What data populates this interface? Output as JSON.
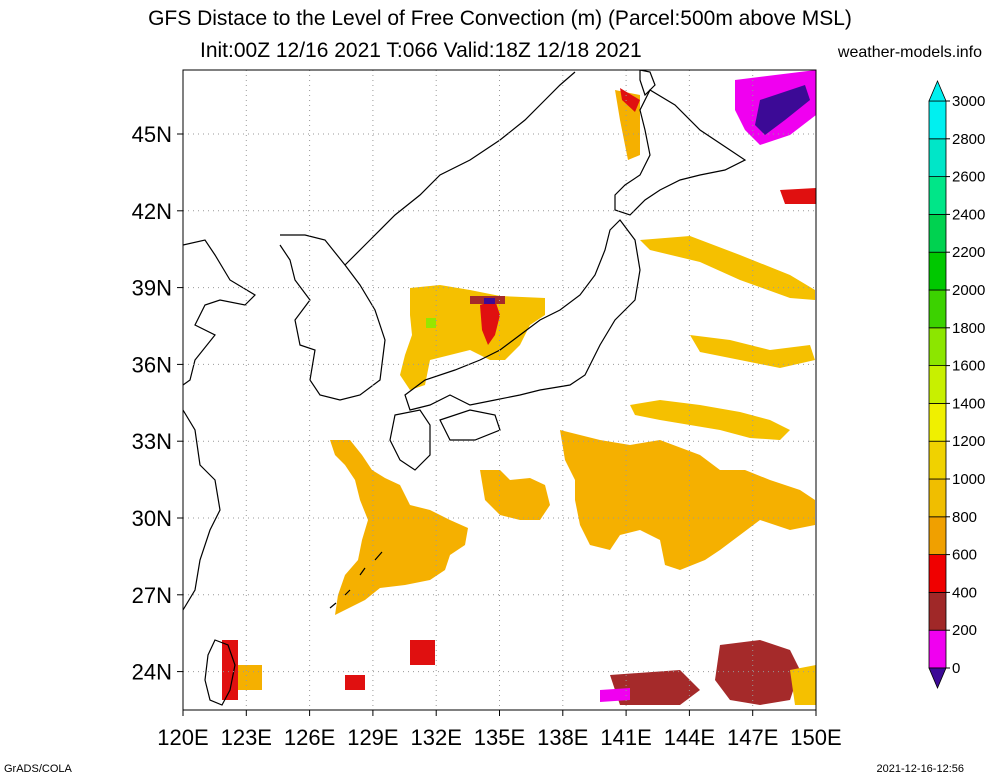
{
  "title": {
    "line1": "GFS Distace to the Level of Free Convection (m) (Parcel:500m above MSL)",
    "line2": "Init:00Z 12/16 2021 T:066 Valid:18Z 12/18 2021"
  },
  "source_site": "weather-models.info",
  "footer": {
    "left": "GrADS/COLA",
    "right": "2021-12-16-12:56"
  },
  "map": {
    "lon_range": [
      120,
      150
    ],
    "lat_range": [
      22.5,
      47.5
    ],
    "lon_ticks": [
      {
        "value": 120,
        "label": "120E"
      },
      {
        "value": 123,
        "label": "123E"
      },
      {
        "value": 126,
        "label": "126E"
      },
      {
        "value": 129,
        "label": "129E"
      },
      {
        "value": 132,
        "label": "132E"
      },
      {
        "value": 135,
        "label": "135E"
      },
      {
        "value": 138,
        "label": "138E"
      },
      {
        "value": 141,
        "label": "141E"
      },
      {
        "value": 144,
        "label": "144E"
      },
      {
        "value": 147,
        "label": "147E"
      },
      {
        "value": 150,
        "label": "150E"
      }
    ],
    "lat_ticks": [
      {
        "value": 24,
        "label": "24N"
      },
      {
        "value": 27,
        "label": "27N"
      },
      {
        "value": 30,
        "label": "30N"
      },
      {
        "value": 33,
        "label": "33N"
      },
      {
        "value": 36,
        "label": "36N"
      },
      {
        "value": 39,
        "label": "39N"
      },
      {
        "value": 42,
        "label": "42N"
      },
      {
        "value": 45,
        "label": "45N"
      }
    ],
    "gridlines": true
  },
  "colorbar": {
    "labels": [
      "0",
      "200",
      "400",
      "600",
      "800",
      "1000",
      "1200",
      "1400",
      "1600",
      "1800",
      "2000",
      "2200",
      "2400",
      "2600",
      "2800",
      "3000"
    ],
    "colors": [
      "#3c0a96",
      "#f000f0",
      "#a02828",
      "#f00000",
      "#f0a000",
      "#f0be00",
      "#f0d200",
      "#f0f000",
      "#c8f000",
      "#8ce600",
      "#3cd200",
      "#00c800",
      "#00d250",
      "#00e688",
      "#00e6c8",
      "#00f0f0"
    ]
  },
  "palette": {
    "v400": "#a52a2a",
    "v600": "#ff0000",
    "v800": "#ffaa00",
    "v1000": "#f5b900",
    "v1200": "#f5d200",
    "v1800": "#96e600",
    "v200": "#f000f0",
    "v0": "#3c0a96"
  }
}
